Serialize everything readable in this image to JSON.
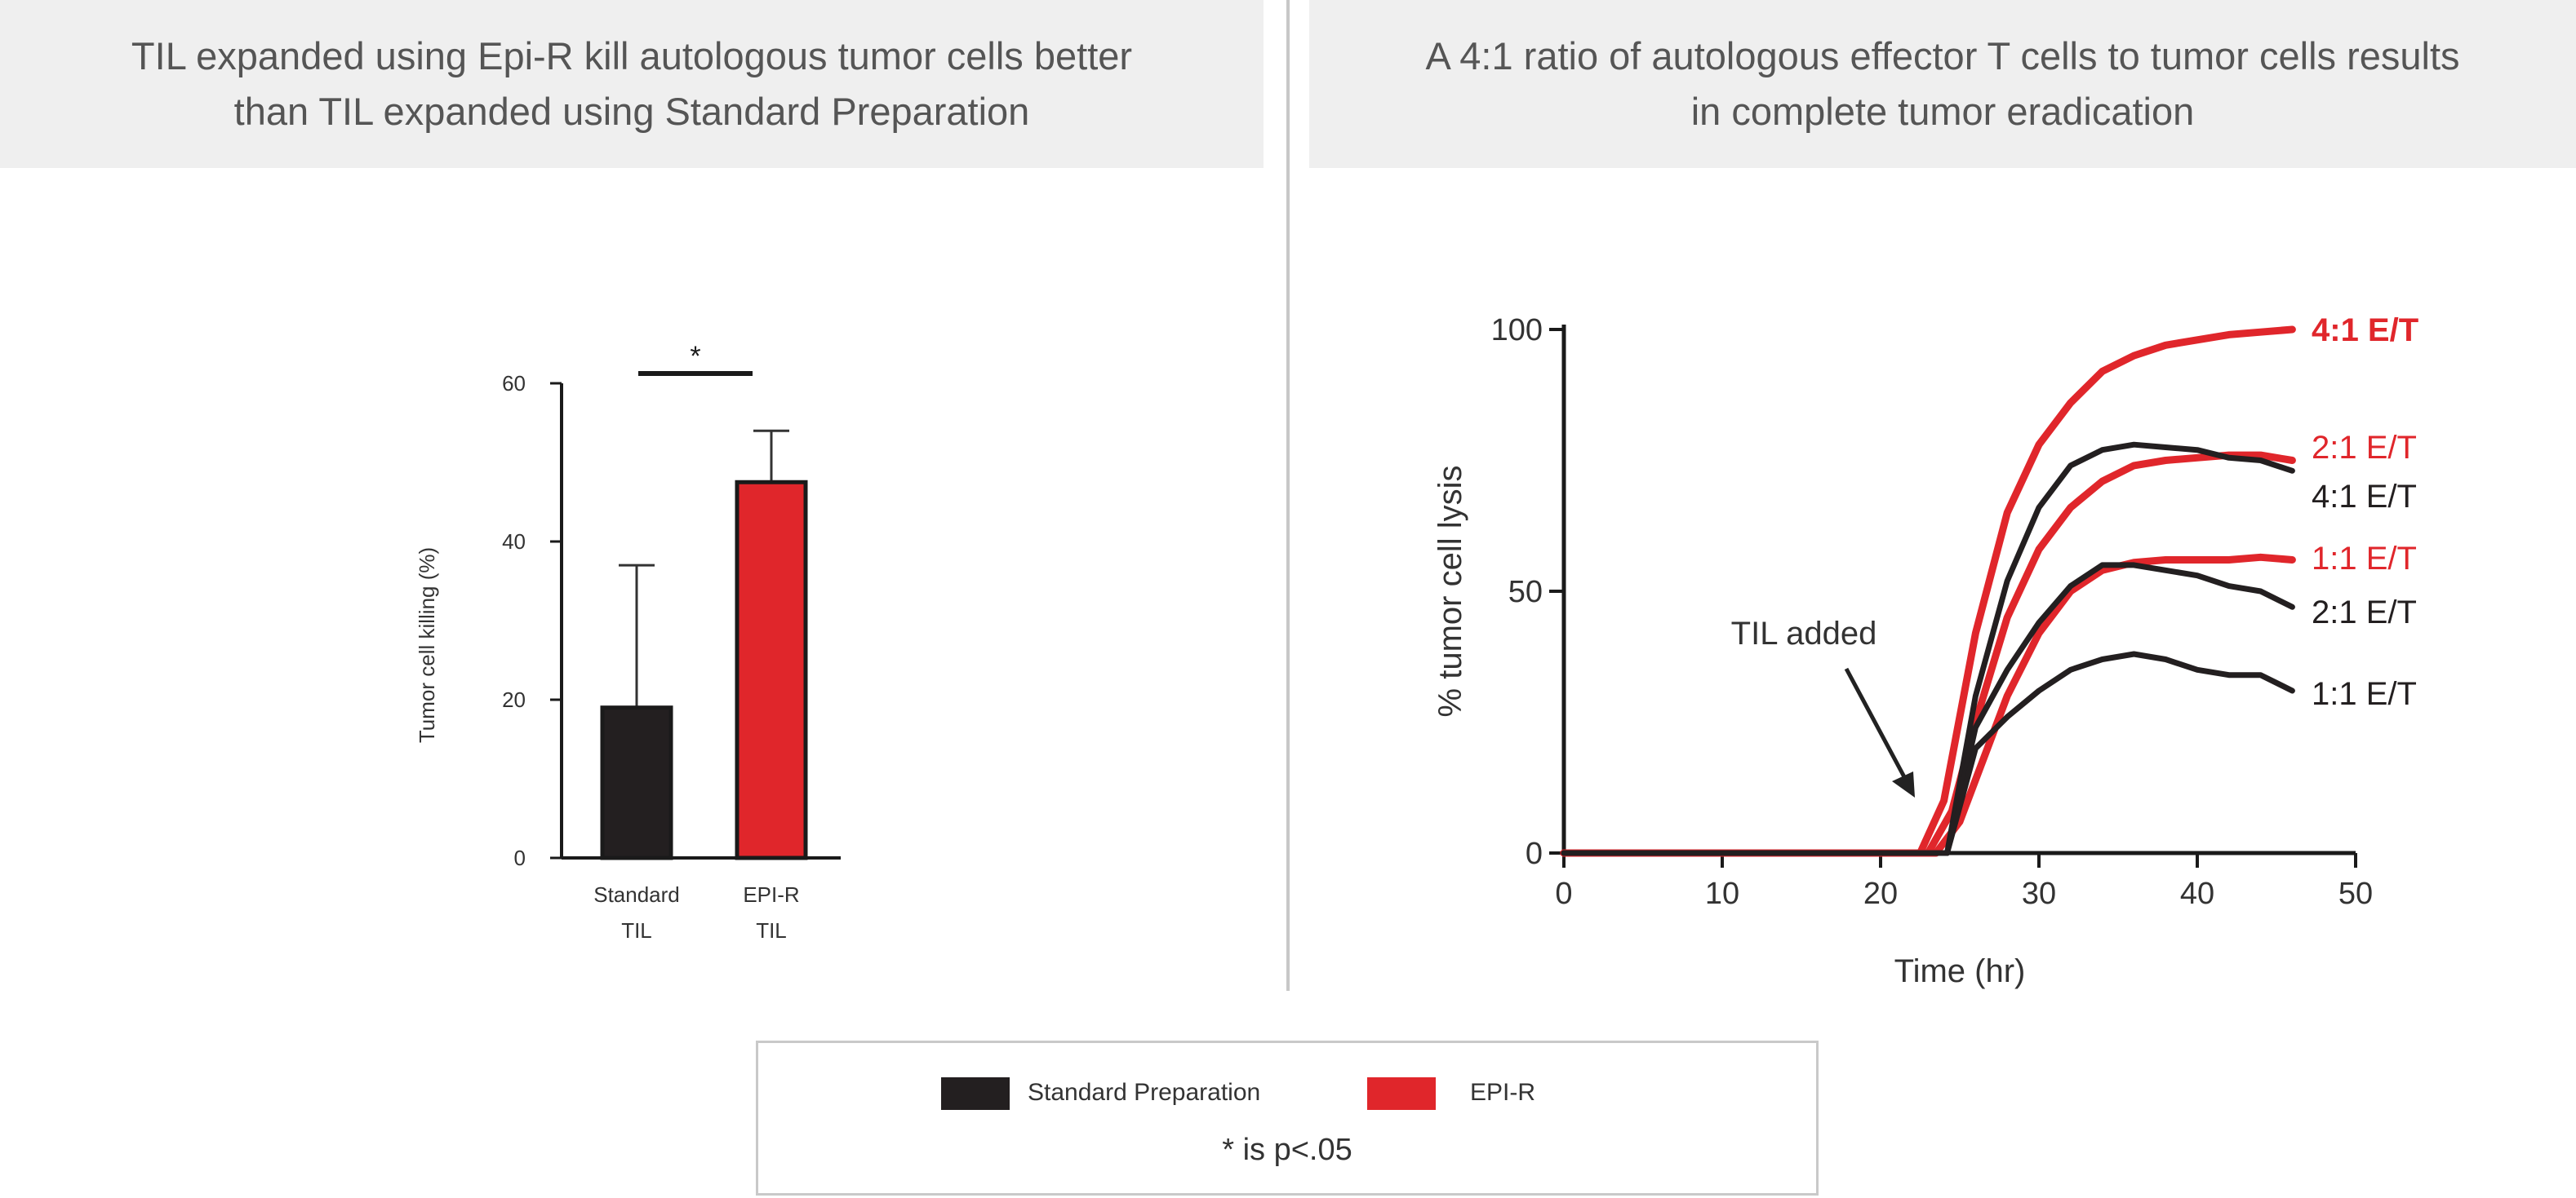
{
  "panels": {
    "left_title_line1": "TIL expanded using Epi-R kill autologous tumor cells better",
    "left_title_line2": "than TIL expanded using Standard Preparation",
    "right_title_line1": "A 4:1 ratio of autologous effector T cells to tumor cells results",
    "right_title_line2": "in complete tumor eradication"
  },
  "legend": {
    "standard_label": "Standard Preparation",
    "epir_label": "EPI-R",
    "note": "* is p<.05"
  },
  "colors": {
    "standard": "#231f20",
    "epir": "#e0262b",
    "axis": "#1a1a1a"
  },
  "chart_data": [
    {
      "type": "bar",
      "ylabel": "Tumor cell killing (%)",
      "ylim": [
        0,
        60
      ],
      "yticks": [
        "0",
        "20",
        "40",
        "60"
      ],
      "categories": [
        [
          "Standard",
          "TIL"
        ],
        [
          "EPI-R",
          "TIL"
        ]
      ],
      "values": [
        19,
        47.5
      ],
      "error_upper": [
        37,
        54
      ],
      "significance_label": "*"
    },
    {
      "type": "line",
      "xlabel": "Time (hr)",
      "ylabel": "% tumor cell lysis",
      "xlim": [
        0,
        50
      ],
      "ylim": [
        0,
        100
      ],
      "xticks": [
        "0",
        "10",
        "20",
        "30",
        "40",
        "50"
      ],
      "yticks": [
        "0",
        "50",
        "100"
      ],
      "annotation": "TIL added",
      "series": [
        {
          "name": "4:1 E/T",
          "group": "epir",
          "x": [
            0,
            22.5,
            24,
            26,
            28,
            30,
            32,
            34,
            36,
            38,
            40,
            42,
            44,
            46
          ],
          "y": [
            0,
            0,
            10,
            42,
            65,
            78,
            86,
            92,
            95,
            97,
            98,
            99,
            99.5,
            100
          ]
        },
        {
          "name": "2:1 E/T",
          "group": "epir",
          "x": [
            0,
            23,
            24.5,
            26,
            28,
            30,
            32,
            34,
            36,
            38,
            40,
            42,
            44,
            46
          ],
          "y": [
            0,
            0,
            8,
            25,
            45,
            58,
            66,
            71,
            74,
            75,
            75.5,
            76,
            76,
            75
          ]
        },
        {
          "name": "1:1 E/T",
          "group": "epir",
          "x": [
            0,
            23.5,
            25,
            26,
            28,
            30,
            32,
            34,
            36,
            38,
            40,
            42,
            44,
            46
          ],
          "y": [
            0,
            0,
            6,
            14,
            30,
            42,
            50,
            54,
            55.5,
            56,
            56,
            56,
            56.5,
            56
          ]
        },
        {
          "name": "4:1 E/T",
          "group": "standard",
          "x": [
            0,
            24.2,
            26,
            28,
            30,
            32,
            34,
            36,
            38,
            40,
            42,
            44,
            46
          ],
          "y": [
            0,
            0,
            30,
            52,
            66,
            74,
            77,
            78,
            77.5,
            77,
            75.5,
            75,
            73
          ]
        },
        {
          "name": "2:1 E/T",
          "group": "standard",
          "x": [
            0,
            24.2,
            26,
            28,
            30,
            32,
            34,
            36,
            38,
            40,
            42,
            44,
            46
          ],
          "y": [
            0,
            0,
            24,
            35,
            44,
            51,
            55,
            55,
            54,
            53,
            51,
            50,
            47
          ]
        },
        {
          "name": "1:1 E/T",
          "group": "standard",
          "x": [
            0,
            24.2,
            26,
            28,
            30,
            32,
            34,
            36,
            38,
            40,
            42,
            44,
            46
          ],
          "y": [
            0,
            0,
            20,
            26,
            31,
            35,
            37,
            38,
            37,
            35,
            34,
            34,
            31
          ]
        }
      ]
    }
  ]
}
